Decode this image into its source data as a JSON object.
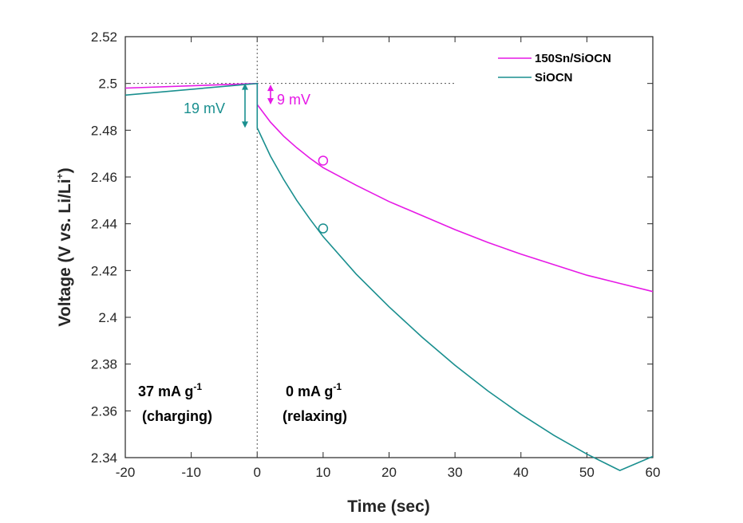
{
  "chart_data": {
    "type": "line",
    "xlabel": "Time (sec)",
    "ylabel_main": "Voltage (V vs. Li/Li",
    "ylabel_sup": "+",
    "ylabel_close": ")",
    "xlim": [
      -20,
      60
    ],
    "ylim": [
      2.34,
      2.52
    ],
    "xticks": [
      -20,
      -10,
      0,
      10,
      20,
      30,
      40,
      50,
      60
    ],
    "yticks": [
      2.34,
      2.36,
      2.38,
      2.4,
      2.42,
      2.44,
      2.46,
      2.48,
      2.5,
      2.52
    ],
    "xtick_labels": [
      "-20",
      "-10",
      "0",
      "10",
      "20",
      "30",
      "40",
      "50",
      "60"
    ],
    "ytick_labels": [
      "2.34",
      "2.36",
      "2.38",
      "2.4",
      "2.42",
      "2.44",
      "2.46",
      "2.48",
      "2.5",
      "2.52"
    ],
    "grid": false,
    "legend_position": "top-right",
    "series": [
      {
        "name": "150Sn/SiOCN",
        "color": "#e619e6",
        "charging": {
          "x": [
            -20,
            0
          ],
          "y": [
            2.498,
            2.5
          ]
        },
        "relaxation": {
          "x": [
            0,
            0,
            2,
            4,
            6,
            8,
            10,
            15,
            20,
            25,
            30,
            35,
            40,
            45,
            50,
            55,
            60
          ],
          "y": [
            2.5,
            2.491,
            2.4835,
            2.4775,
            2.4725,
            2.468,
            2.464,
            2.4565,
            2.4495,
            2.4435,
            2.4375,
            2.432,
            2.427,
            2.4225,
            2.418,
            2.4145,
            2.411
          ]
        },
        "marker": {
          "x": 10,
          "y": 2.467
        }
      },
      {
        "name": "SiOCN",
        "color": "#1a8f8f",
        "charging": {
          "x": [
            -20,
            0
          ],
          "y": [
            2.495,
            2.5
          ]
        },
        "relaxation": {
          "x": [
            0,
            0,
            2,
            4,
            6,
            8,
            10,
            15,
            20,
            25,
            30,
            35,
            40,
            45,
            50,
            55,
            60
          ],
          "y": [
            2.5,
            2.481,
            2.469,
            2.459,
            2.45,
            2.442,
            2.4345,
            2.4185,
            2.4045,
            2.3915,
            2.3795,
            2.3685,
            2.3585,
            2.3495,
            2.3415,
            2.3345,
            2.3405
          ]
        },
        "marker": {
          "x": 10,
          "y": 2.438
        }
      }
    ],
    "reference_line_y": 2.5,
    "reference_line_x_end": 30,
    "annotations": {
      "sioc_drop": "19 mV",
      "sn_drop": "9 mV",
      "charge_rate": "37 mA g",
      "charge_rate_sup": "-1",
      "charge_label": "(charging)",
      "relax_rate": "0 mA g",
      "relax_rate_sup": "-1",
      "relax_label": "(relaxing)"
    }
  }
}
